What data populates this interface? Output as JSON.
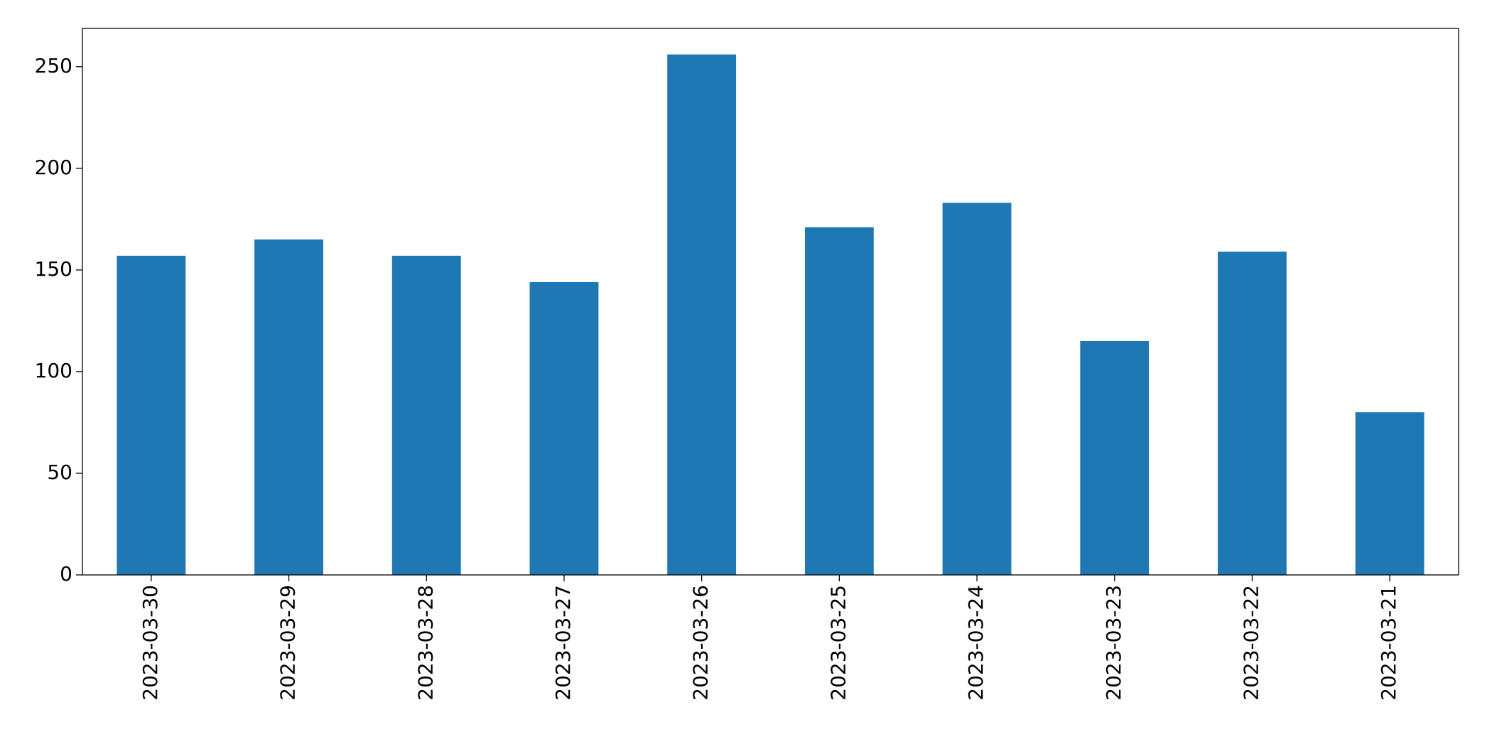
{
  "chart_data": {
    "type": "bar",
    "categories": [
      "2023-03-30",
      "2023-03-29",
      "2023-03-28",
      "2023-03-27",
      "2023-03-26",
      "2023-03-25",
      "2023-03-24",
      "2023-03-23",
      "2023-03-22",
      "2023-03-21"
    ],
    "values": [
      157,
      165,
      157,
      144,
      256,
      171,
      183,
      115,
      159,
      80
    ],
    "color": "#1f77b4",
    "ylim": [
      0,
      268.8
    ],
    "yticks": [
      0,
      50,
      100,
      150,
      200,
      250
    ],
    "grid": false
  }
}
